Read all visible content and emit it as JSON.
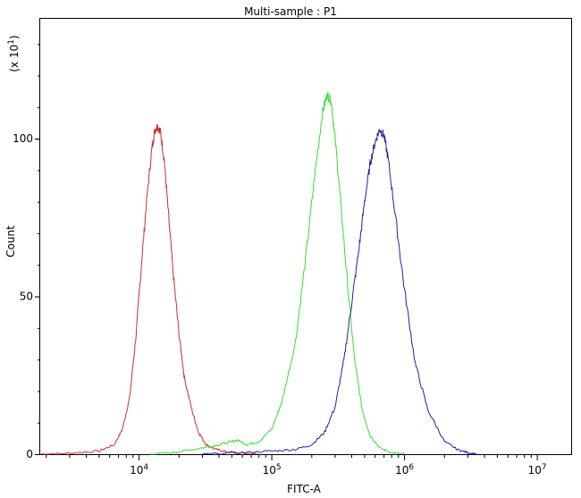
{
  "chart_data": {
    "type": "line",
    "title": "Multi-sample : P1",
    "xlabel": "FITC-A",
    "ylabel": "Count",
    "y_multiplier_label": "(x 10",
    "y_multiplier_exp": "1",
    "x_scale": "log",
    "xlim": [
      1800,
      18000000
    ],
    "ylim": [
      0,
      138
    ],
    "y_ticks": [
      0,
      50,
      100
    ],
    "x_ticks": [
      {
        "value": 10000,
        "base": "10",
        "exp": "4"
      },
      {
        "value": 100000,
        "base": "10",
        "exp": "5"
      },
      {
        "value": 1000000,
        "base": "10",
        "exp": "6"
      },
      {
        "value": 10000000,
        "base": "10",
        "exp": "7"
      }
    ],
    "grid": false,
    "series": [
      {
        "color": "#c8302d",
        "x": [
          1800,
          3000,
          5000,
          6500,
          7500,
          8500,
          9500,
          10500,
          11500,
          12500,
          13200,
          13800,
          14500,
          15500,
          16500,
          18000,
          20000,
          22000,
          25000,
          28000,
          32000,
          38000,
          45000,
          60000,
          80000
        ],
        "y": [
          0,
          0.3,
          1,
          3,
          8,
          18,
          38,
          62,
          82,
          97,
          103,
          104,
          102,
          93,
          78,
          58,
          38,
          24,
          14,
          7,
          3,
          1.5,
          0.8,
          0.3,
          0
        ]
      },
      {
        "color": "#33dd33",
        "x": [
          12000,
          18000,
          25000,
          35000,
          45000,
          55000,
          65000,
          80000,
          100000,
          120000,
          150000,
          180000,
          210000,
          240000,
          260000,
          280000,
          300000,
          330000,
          370000,
          420000,
          480000,
          550000,
          650000,
          800000,
          1000000
        ],
        "y": [
          0,
          0.5,
          1.5,
          2.5,
          3.5,
          4.5,
          3,
          4,
          8,
          17,
          35,
          62,
          88,
          108,
          114,
          112,
          100,
          80,
          55,
          30,
          14,
          6,
          2,
          0.5,
          0
        ]
      },
      {
        "color": "#22229a",
        "x": [
          30000,
          60000,
          100000,
          150000,
          200000,
          250000,
          300000,
          350000,
          400000,
          450000,
          500000,
          550000,
          600000,
          650000,
          700000,
          750000,
          850000,
          1000000,
          1200000,
          1500000,
          2000000,
          2500000,
          3000000,
          3500000
        ],
        "y": [
          0,
          0.5,
          1,
          1.5,
          3,
          7,
          15,
          30,
          48,
          64,
          80,
          92,
          99,
          103,
          101,
          94,
          76,
          52,
          29,
          14,
          4,
          1.5,
          0.5,
          0
        ]
      }
    ]
  }
}
